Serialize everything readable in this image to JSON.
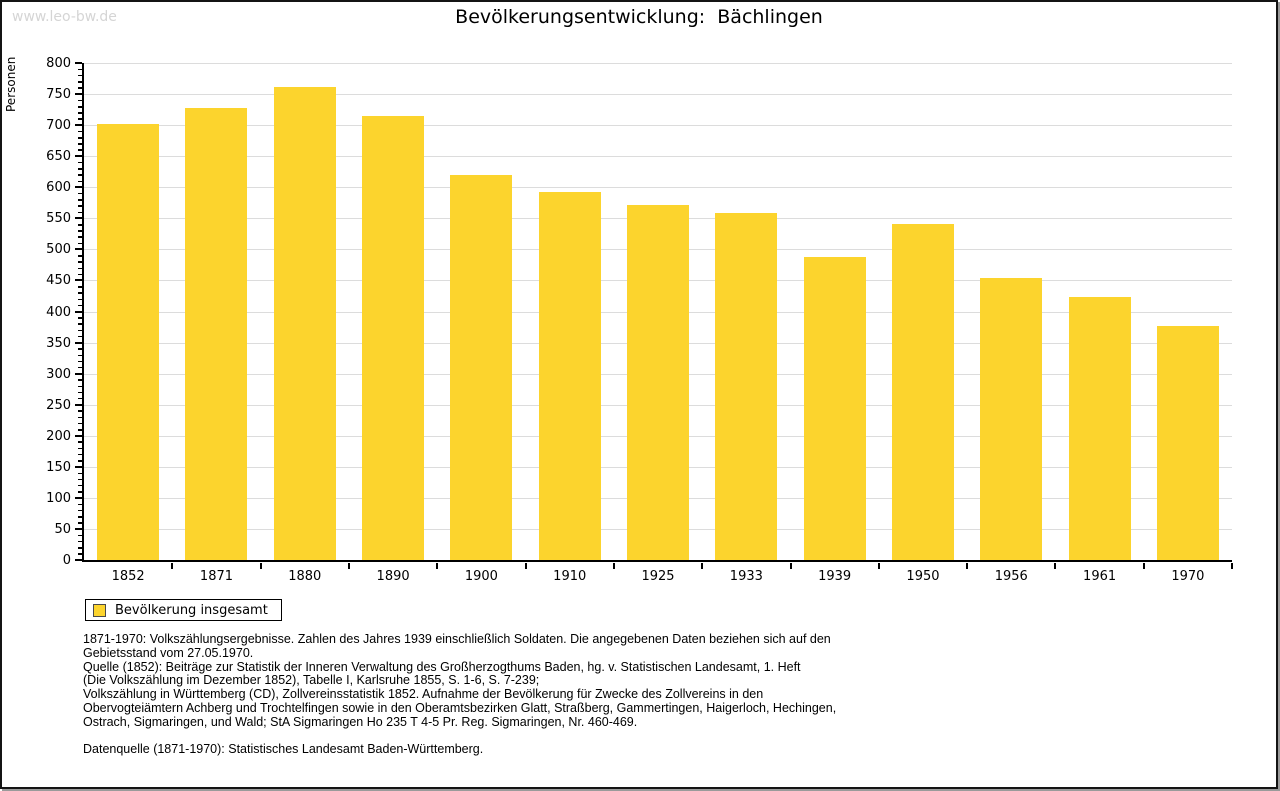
{
  "watermark": "www.leo-bw.de",
  "chart_data": {
    "type": "bar",
    "title": "Bevölkerungsentwicklung:  Bächlingen",
    "xlabel": "",
    "ylabel": "Personen",
    "ylim": [
      0,
      800
    ],
    "y_major_step": 50,
    "y_minor_step": 10,
    "grid": true,
    "legend_position": "bottom-left",
    "categories": [
      "1852",
      "1871",
      "1880",
      "1890",
      "1900",
      "1910",
      "1925",
      "1933",
      "1939",
      "1950",
      "1956",
      "1961",
      "1970"
    ],
    "series": [
      {
        "name": "Bevölkerung insgesamt",
        "values": [
          702,
          728,
          762,
          715,
          620,
          593,
          571,
          558,
          487,
          541,
          454,
          424,
          377
        ]
      }
    ]
  },
  "legend": {
    "label": "Bevölkerung insgesamt"
  },
  "footnotes": {
    "lines": [
      "1871-1970: Volkszählungsergebnisse. Zahlen des Jahres 1939 einschließlich Soldaten. Die angegebenen Daten beziehen sich auf den",
      "Gebietsstand vom 27.05.1970.",
      "Quelle (1852): Beiträge zur Statistik der Inneren Verwaltung des Großherzogthums Baden, hg. v. Statistischen Landesamt, 1. Heft",
      "(Die Volkszählung im Dezember 1852), Tabelle I, Karlsruhe 1855, S. 1-6, S. 7-239;",
      "Volkszählung in Württemberg (CD), Zollvereinsstatistik 1852. Aufnahme der Bevölkerung für Zwecke des Zollvereins in den",
      "Obervogteiämtern Achberg und Trochtelfingen sowie in den Oberamtsbezirken Glatt, Straßberg, Gammertingen, Haigerloch, Hechingen,",
      "Ostrach, Sigmaringen, und Wald; StA Sigmaringen Ho 235 T 4-5 Pr. Reg. Sigmaringen, Nr. 460-469.",
      "",
      "Datenquelle (1871-1970): Statistisches Landesamt Baden-Württemberg."
    ]
  },
  "colors": {
    "bar": "#FCD42D",
    "grid": "#DCDCDC",
    "axis": "#000000",
    "watermark": "#D5D5D5",
    "text": "#000000"
  }
}
